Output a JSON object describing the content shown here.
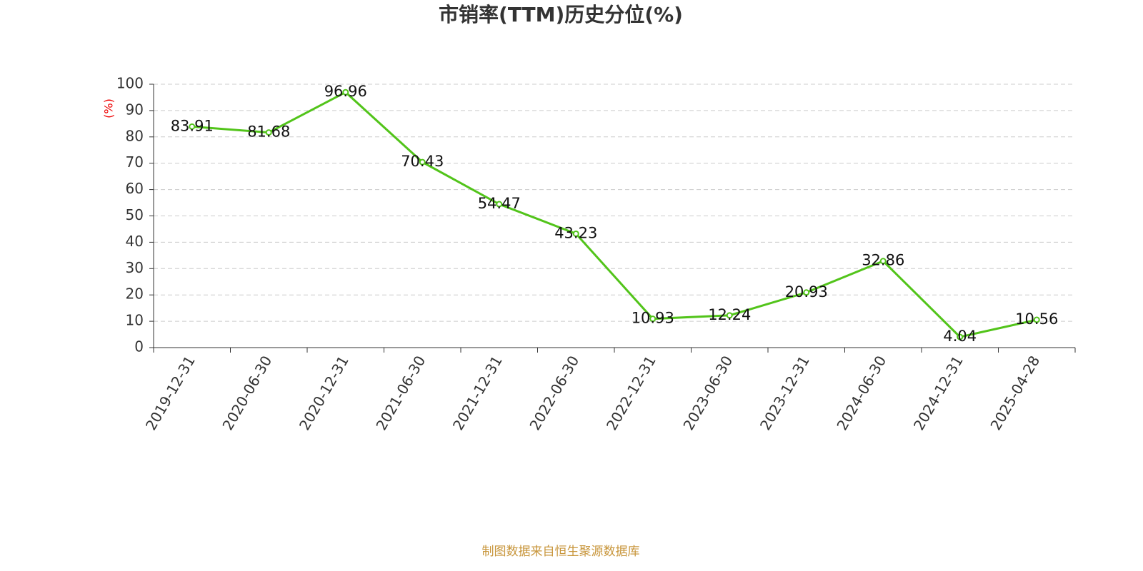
{
  "chart_data": {
    "type": "line",
    "title": "市销率(TTM)历史分位(%)",
    "y_label": "(%)",
    "source": "制图数据来自恒生聚源数据库",
    "categories": [
      "2019-12-31",
      "2020-06-30",
      "2020-12-31",
      "2021-06-30",
      "2021-12-31",
      "2022-06-30",
      "2022-12-31",
      "2023-06-30",
      "2023-12-31",
      "2024-06-30",
      "2024-12-31",
      "2025-04-28"
    ],
    "values": [
      83.91,
      81.68,
      96.96,
      70.43,
      54.47,
      43.23,
      10.93,
      12.24,
      20.93,
      32.86,
      4.04,
      10.56
    ],
    "color": "#52c41a",
    "ylim": [
      0,
      100
    ],
    "yticks": [
      0,
      10,
      20,
      30,
      40,
      50,
      60,
      70,
      80,
      90,
      100
    ],
    "grid": true
  }
}
